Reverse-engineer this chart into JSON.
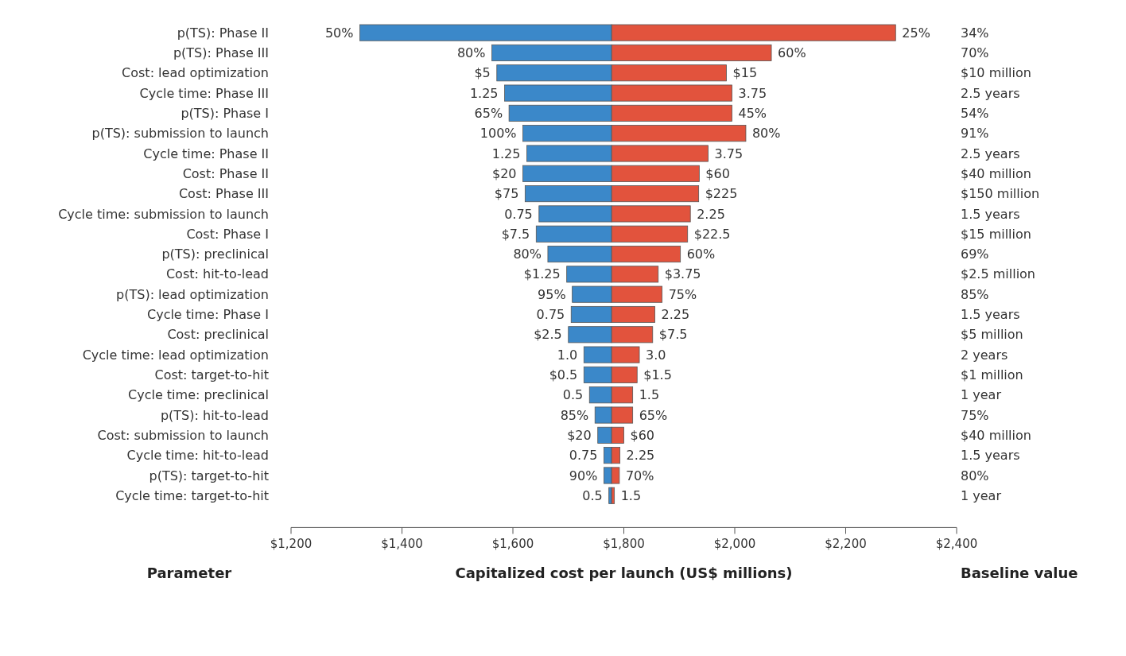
{
  "chart_data": {
    "type": "bar",
    "orientation": "horizontal",
    "xlabel": "Capitalized cost per launch (US$ millions)",
    "ylabel": "Parameter",
    "y2label": "Baseline value",
    "categories": [
      "p(TS): Phase II",
      "p(TS): Phase III",
      "Cost: lead optimization",
      "Cycle time: Phase III",
      "p(TS): Phase I",
      "p(TS): submission to launch",
      "Cycle time: Phase II",
      "Cost: Phase II",
      "Cost: Phase III",
      "Cycle time: submission to launch",
      "Cost: Phase I",
      "p(TS): preclinical",
      "Cost: hit-to-lead",
      "p(TS): lead optimization",
      "Cycle time: Phase I",
      "Cost: preclinical",
      "Cycle time: lead optimization",
      "Cost: target-to-hit",
      "Cycle time: preclinical",
      "p(TS): hit-to-lead",
      "Cost: submission to launch",
      "Cycle time: hit-to-lead",
      "p(TS): target-to-hit",
      "Cycle time: target-to-hit"
    ],
    "y2_categories": [
      "34%",
      "70%",
      "$10 million",
      "2.5 years",
      "54%",
      "91%",
      "2.5 years",
      "$40 million",
      "$150 million",
      "1.5 years",
      "$15 million",
      "69%",
      "$2.5 million",
      "85%",
      "1.5 years",
      "$5 million",
      "2 years",
      "$1 million",
      "1 year",
      "75%",
      "$40 million",
      "1.5 years",
      "80%",
      "1 year"
    ],
    "series": [
      {
        "color": "#3b88c9",
        "base": [
          1324,
          1562,
          1571,
          1585,
          1593,
          1618,
          1625,
          1618,
          1622,
          1647,
          1642,
          1663,
          1697,
          1707,
          1705,
          1700,
          1728,
          1728,
          1738,
          1748,
          1753,
          1764,
          1764,
          1773
        ],
        "values": [
          454,
          216,
          207,
          193,
          185,
          160,
          153,
          160,
          156,
          131,
          136,
          115,
          81,
          71,
          73,
          78,
          50,
          50,
          40,
          30,
          25,
          14,
          14,
          5
        ]
      },
      {
        "color": "#e2533d",
        "base": [
          1778,
          1778,
          1778,
          1778,
          1778,
          1778,
          1778,
          1778,
          1778,
          1778,
          1778,
          1778,
          1778,
          1778,
          1778,
          1778,
          1778,
          1778,
          1778,
          1778,
          1778,
          1778,
          1778,
          1778
        ],
        "values": [
          512,
          288,
          207,
          217,
          217,
          242,
          174,
          158,
          157,
          142,
          137,
          124,
          84,
          91,
          78,
          74,
          50,
          46,
          38,
          38,
          22,
          15,
          14,
          5
        ]
      }
    ],
    "annotations": [
      {
        "text": "50%",
        "x": 1324,
        "y": "p(TS): Phase II"
      },
      {
        "text": "25%",
        "x": 2290,
        "y": "p(TS): Phase II"
      },
      {
        "text": "80%",
        "x": 1562,
        "y": "p(TS): Phase III"
      },
      {
        "text": "60%",
        "x": 2066,
        "y": "p(TS): Phase III"
      },
      {
        "text": "$5",
        "x": 1571,
        "y": "Cost: lead optimization"
      },
      {
        "text": "$15",
        "x": 1985,
        "y": "Cost: lead optimization"
      },
      {
        "text": "1.25",
        "x": 1585,
        "y": "Cycle time: Phase III"
      },
      {
        "text": "3.75",
        "x": 1995,
        "y": "Cycle time: Phase III"
      },
      {
        "text": "65%",
        "x": 1593,
        "y": "p(TS): Phase I"
      },
      {
        "text": "45%",
        "x": 1995,
        "y": "p(TS): Phase I"
      },
      {
        "text": "100%",
        "x": 1618,
        "y": "p(TS): submission to launch"
      },
      {
        "text": "80%",
        "x": 2020,
        "y": "p(TS): submission to launch"
      },
      {
        "text": "1.25",
        "x": 1625,
        "y": "Cycle time: Phase II"
      },
      {
        "text": "3.75",
        "x": 1952,
        "y": "Cycle time: Phase II"
      },
      {
        "text": "$20",
        "x": 1618,
        "y": "Cost: Phase II"
      },
      {
        "text": "$60",
        "x": 1936,
        "y": "Cost: Phase II"
      },
      {
        "text": "$75",
        "x": 1622,
        "y": "Cost: Phase III"
      },
      {
        "text": "$225",
        "x": 1935,
        "y": "Cost: Phase III"
      },
      {
        "text": "0.75",
        "x": 1647,
        "y": "Cycle time: submission to launch"
      },
      {
        "text": "2.25",
        "x": 1920,
        "y": "Cycle time: submission to launch"
      },
      {
        "text": "$7.5",
        "x": 1642,
        "y": "Cost: Phase I"
      },
      {
        "text": "$22.5",
        "x": 1915,
        "y": "Cost: Phase I"
      },
      {
        "text": "80%",
        "x": 1663,
        "y": "p(TS): preclinical"
      },
      {
        "text": "60%",
        "x": 1902,
        "y": "p(TS): preclinical"
      },
      {
        "text": "$1.25",
        "x": 1697,
        "y": "Cost: hit-to-lead"
      },
      {
        "text": "$3.75",
        "x": 1862,
        "y": "Cost: hit-to-lead"
      },
      {
        "text": "95%",
        "x": 1707,
        "y": "p(TS): lead optimization"
      },
      {
        "text": "75%",
        "x": 1869,
        "y": "p(TS): lead optimization"
      },
      {
        "text": "0.75",
        "x": 1705,
        "y": "Cycle time: Phase I"
      },
      {
        "text": "2.25",
        "x": 1856,
        "y": "Cycle time: Phase I"
      },
      {
        "text": "$2.5",
        "x": 1700,
        "y": "Cost: preclinical"
      },
      {
        "text": "$7.5",
        "x": 1852,
        "y": "Cost: preclinical"
      },
      {
        "text": "1.0",
        "x": 1728,
        "y": "Cycle time: lead optimization"
      },
      {
        "text": "3.0",
        "x": 1828,
        "y": "Cycle time: lead optimization"
      },
      {
        "text": "$0.5",
        "x": 1728,
        "y": "Cost: target-to-hit"
      },
      {
        "text": "$1.5",
        "x": 1824,
        "y": "Cost: target-to-hit"
      },
      {
        "text": "0.5",
        "x": 1738,
        "y": "Cycle time: preclinical"
      },
      {
        "text": "1.5",
        "x": 1816,
        "y": "Cycle time: preclinical"
      },
      {
        "text": "85%",
        "x": 1748,
        "y": "p(TS): hit-to-lead"
      },
      {
        "text": "65%",
        "x": 1816,
        "y": "p(TS): hit-to-lead"
      },
      {
        "text": "$20",
        "x": 1753,
        "y": "Cost: submission to launch"
      },
      {
        "text": "$60",
        "x": 1800,
        "y": "Cost: submission to launch"
      },
      {
        "text": "0.75",
        "x": 1764,
        "y": "Cycle time: hit-to-lead"
      },
      {
        "text": "2.25",
        "x": 1793,
        "y": "Cycle time: hit-to-lead"
      },
      {
        "text": "90%",
        "x": 1764,
        "y": "p(TS): target-to-hit"
      },
      {
        "text": "70%",
        "x": 1792,
        "y": "p(TS): target-to-hit"
      },
      {
        "text": "0.5",
        "x": 1773,
        "y": "Cycle time: target-to-hit"
      },
      {
        "text": "1.5",
        "x": 1783,
        "y": "Cycle time: target-to-hit"
      }
    ],
    "xlim": [
      1200,
      2400
    ],
    "xticks": [
      {
        "value": 1200,
        "label": "$1,200"
      },
      {
        "value": 1400,
        "label": "$1,400"
      },
      {
        "value": 1600,
        "label": "$1,600"
      },
      {
        "value": 1800,
        "label": "$1,800"
      },
      {
        "value": 2000,
        "label": "$2,000"
      },
      {
        "value": 2200,
        "label": "$2,200"
      },
      {
        "value": 2400,
        "label": "$2,400"
      }
    ]
  }
}
